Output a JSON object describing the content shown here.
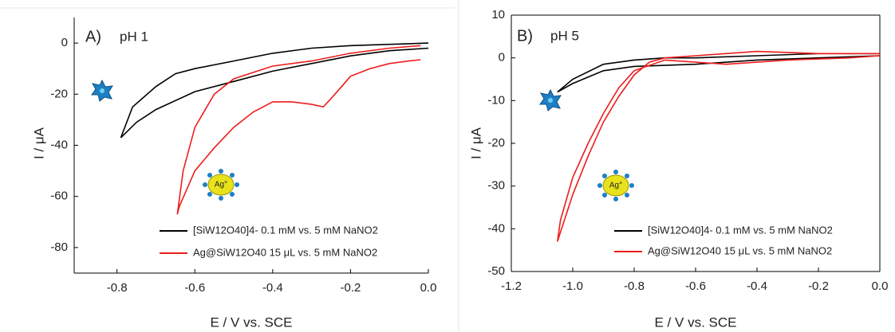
{
  "chart_data": [
    {
      "type": "line",
      "panel_label": "A)",
      "annotation": "pH 1",
      "particle_label": "Ag°",
      "xlabel": "E / V vs. SCE",
      "ylabel": "I / μA",
      "xlim": [
        -0.91,
        0
      ],
      "ylim": [
        -90,
        10
      ],
      "xticks": [
        -0.8,
        -0.6,
        -0.4,
        -0.2,
        {
          "value": 0,
          "label": "0.0"
        }
      ],
      "yticks": [
        0,
        -20,
        -40,
        -60,
        -80
      ],
      "series": [
        {
          "name": "[SiW12O40]4- 0.1 mM vs. 5 mM NaNO2",
          "color": "#000000",
          "x": [
            0,
            -0.1,
            -0.2,
            -0.3,
            -0.4,
            -0.5,
            -0.6,
            -0.7,
            -0.75,
            -0.79,
            -0.76,
            -0.7,
            -0.65,
            -0.6,
            -0.5,
            -0.4,
            -0.3,
            -0.2,
            -0.1,
            0
          ],
          "values": [
            -2,
            -3,
            -5,
            -8,
            -11,
            -15,
            -19,
            -26,
            -31,
            -37,
            -25,
            -17,
            -12,
            -10,
            -7,
            -4,
            -2,
            -1,
            -0.5,
            0
          ]
        },
        {
          "name": "Ag@SiW12O40 15 μL vs. 5 mM NaNO2",
          "color": "#ee1c1c",
          "x": [
            -0.02,
            -0.1,
            -0.2,
            -0.3,
            -0.4,
            -0.5,
            -0.55,
            -0.6,
            -0.63,
            -0.645,
            -0.64,
            -0.6,
            -0.55,
            -0.5,
            -0.45,
            -0.4,
            -0.35,
            -0.3,
            -0.27,
            -0.24,
            -0.2,
            -0.15,
            -0.1,
            -0.05,
            -0.02
          ],
          "values": [
            -1,
            -2,
            -4,
            -7,
            -9,
            -14,
            -20,
            -33,
            -50,
            -67,
            -64,
            -50,
            -41,
            -33,
            -27,
            -23,
            -23,
            -24,
            -25,
            -20,
            -13,
            -10,
            -8,
            -7,
            -6.5
          ]
        }
      ]
    },
    {
      "type": "line",
      "panel_label": "B)",
      "annotation": "pH 5",
      "particle_label": "Ag°",
      "xlabel": "E / V vs. SCE",
      "ylabel": "I / μA",
      "xlim": [
        -1.2,
        0
      ],
      "ylim": [
        -50,
        10
      ],
      "xticks": [
        -1.2,
        {
          "value": -1,
          "label": "-1.0"
        },
        -0.8,
        -0.6,
        -0.4,
        -0.2,
        {
          "value": 0,
          "label": "0.0"
        }
      ],
      "yticks": [
        10,
        0,
        -10,
        -20,
        -30,
        -40,
        -50
      ],
      "series": [
        {
          "name": "[SiW12O40]4- 0.1 mM vs. 5 mM NaNO2",
          "color": "#000000",
          "x": [
            0,
            -0.2,
            -0.4,
            -0.6,
            -0.7,
            -0.8,
            -0.9,
            -1.0,
            -1.05,
            -1.0,
            -0.9,
            -0.8,
            -0.6,
            -0.4,
            -0.2,
            0
          ],
          "values": [
            1,
            1,
            0.5,
            0,
            0,
            -0.5,
            -1.5,
            -5,
            -8,
            -6,
            -3,
            -2,
            -1.5,
            -0.5,
            0,
            0.5
          ]
        },
        {
          "name": "Ag@SiW12O40 15 μL vs. 5 mM NaNO2",
          "color": "#ee1c1c",
          "x": [
            0,
            -0.2,
            -0.4,
            -0.6,
            -0.7,
            -0.75,
            -0.8,
            -0.85,
            -0.9,
            -0.95,
            -1.0,
            -1.05,
            -1.04,
            -1.0,
            -0.95,
            -0.9,
            -0.85,
            -0.8,
            -0.7,
            -0.5,
            -0.3,
            -0.1,
            0
          ],
          "values": [
            1,
            1,
            1.5,
            0.5,
            0,
            -1,
            -4,
            -9,
            -15,
            -23,
            -32,
            -43,
            -38,
            -28,
            -20,
            -13,
            -7,
            -3,
            -0.5,
            -1.5,
            -0.5,
            0,
            0.5
          ]
        }
      ]
    }
  ]
}
